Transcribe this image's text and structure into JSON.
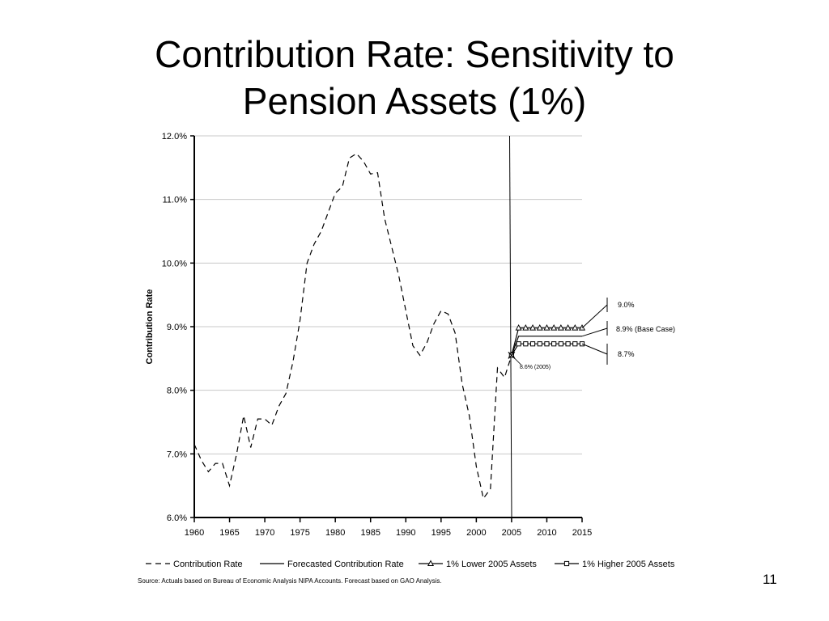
{
  "slide": {
    "title_line1": "Contribution Rate: Sensitivity to",
    "title_line2": "Pension Assets (1%)",
    "source": "Source: Actuals based on Bureau of Economic Analysis NIPA Accounts.  Forecast based on GAO Analysis.",
    "page_number": "11"
  },
  "chart_data": {
    "type": "line",
    "title": "",
    "xlabel": "",
    "ylabel": "Contribution Rate",
    "xlim": [
      1960,
      2015
    ],
    "ylim": [
      6.0,
      12.0
    ],
    "x_ticks": [
      1960,
      1965,
      1970,
      1975,
      1980,
      1985,
      1990,
      1995,
      2000,
      2005,
      2010,
      2015
    ],
    "y_ticks": [
      6.0,
      7.0,
      8.0,
      9.0,
      10.0,
      11.0,
      12.0
    ],
    "y_tick_labels": [
      "6.0%",
      "7.0%",
      "8.0%",
      "9.0%",
      "10.0%",
      "11.0%",
      "12.0%"
    ],
    "grid": "horizontal",
    "legend_position": "bottom",
    "series": [
      {
        "name": "Contribution Rate",
        "style": "dashed",
        "x": [
          1960,
          1961,
          1962,
          1963,
          1964,
          1965,
          1966,
          1967,
          1968,
          1969,
          1970,
          1971,
          1972,
          1973,
          1974,
          1975,
          1976,
          1977,
          1978,
          1979,
          1980,
          1981,
          1982,
          1983,
          1984,
          1985,
          1986,
          1987,
          1988,
          1989,
          1990,
          1991,
          1992,
          1993,
          1994,
          1995,
          1996,
          1997,
          1998,
          1999,
          2000,
          2001,
          2002,
          2003,
          2004,
          2005
        ],
        "y": [
          7.15,
          6.9,
          6.72,
          6.85,
          6.85,
          6.5,
          7.0,
          7.6,
          7.1,
          7.55,
          7.55,
          7.45,
          7.75,
          7.95,
          8.45,
          9.1,
          10.0,
          10.3,
          10.5,
          10.8,
          11.1,
          11.2,
          11.65,
          11.72,
          11.6,
          11.4,
          11.42,
          10.7,
          10.25,
          9.8,
          9.25,
          8.7,
          8.55,
          8.75,
          9.05,
          9.25,
          9.2,
          8.9,
          8.1,
          7.6,
          6.8,
          6.3,
          6.45,
          8.35,
          8.2,
          8.55
        ]
      },
      {
        "name": "Forecasted Contribution Rate",
        "style": "solid",
        "x": [
          2005,
          2006,
          2007,
          2008,
          2009,
          2010,
          2011,
          2012,
          2013,
          2014,
          2015
        ],
        "y": [
          8.55,
          8.85,
          8.85,
          8.85,
          8.85,
          8.85,
          8.85,
          8.85,
          8.85,
          8.85,
          8.85
        ]
      },
      {
        "name": "1% Lower 2005 Assets",
        "style": "triangle",
        "x": [
          2005,
          2006,
          2007,
          2008,
          2009,
          2010,
          2011,
          2012,
          2013,
          2014,
          2015
        ],
        "y": [
          8.55,
          8.98,
          8.98,
          8.98,
          8.98,
          8.98,
          8.98,
          8.98,
          8.98,
          8.98,
          8.98
        ]
      },
      {
        "name": "1% Higher 2005 Assets",
        "style": "square",
        "x": [
          2005,
          2006,
          2007,
          2008,
          2009,
          2010,
          2011,
          2012,
          2013,
          2014,
          2015
        ],
        "y": [
          8.55,
          8.73,
          8.73,
          8.73,
          8.73,
          8.73,
          8.73,
          8.73,
          8.73,
          8.73,
          8.73
        ]
      }
    ],
    "annotations": [
      {
        "text": "9.0%",
        "target_year": 2015,
        "target_value": 8.98
      },
      {
        "text": "8.9% (Base Case)",
        "target_year": 2015,
        "target_value": 8.85
      },
      {
        "text": "8.7%",
        "target_year": 2015,
        "target_value": 8.73
      },
      {
        "text": "8.6% (2005)",
        "target_year": 2005,
        "target_value": 8.55
      }
    ],
    "reference_line_year": 2005
  }
}
